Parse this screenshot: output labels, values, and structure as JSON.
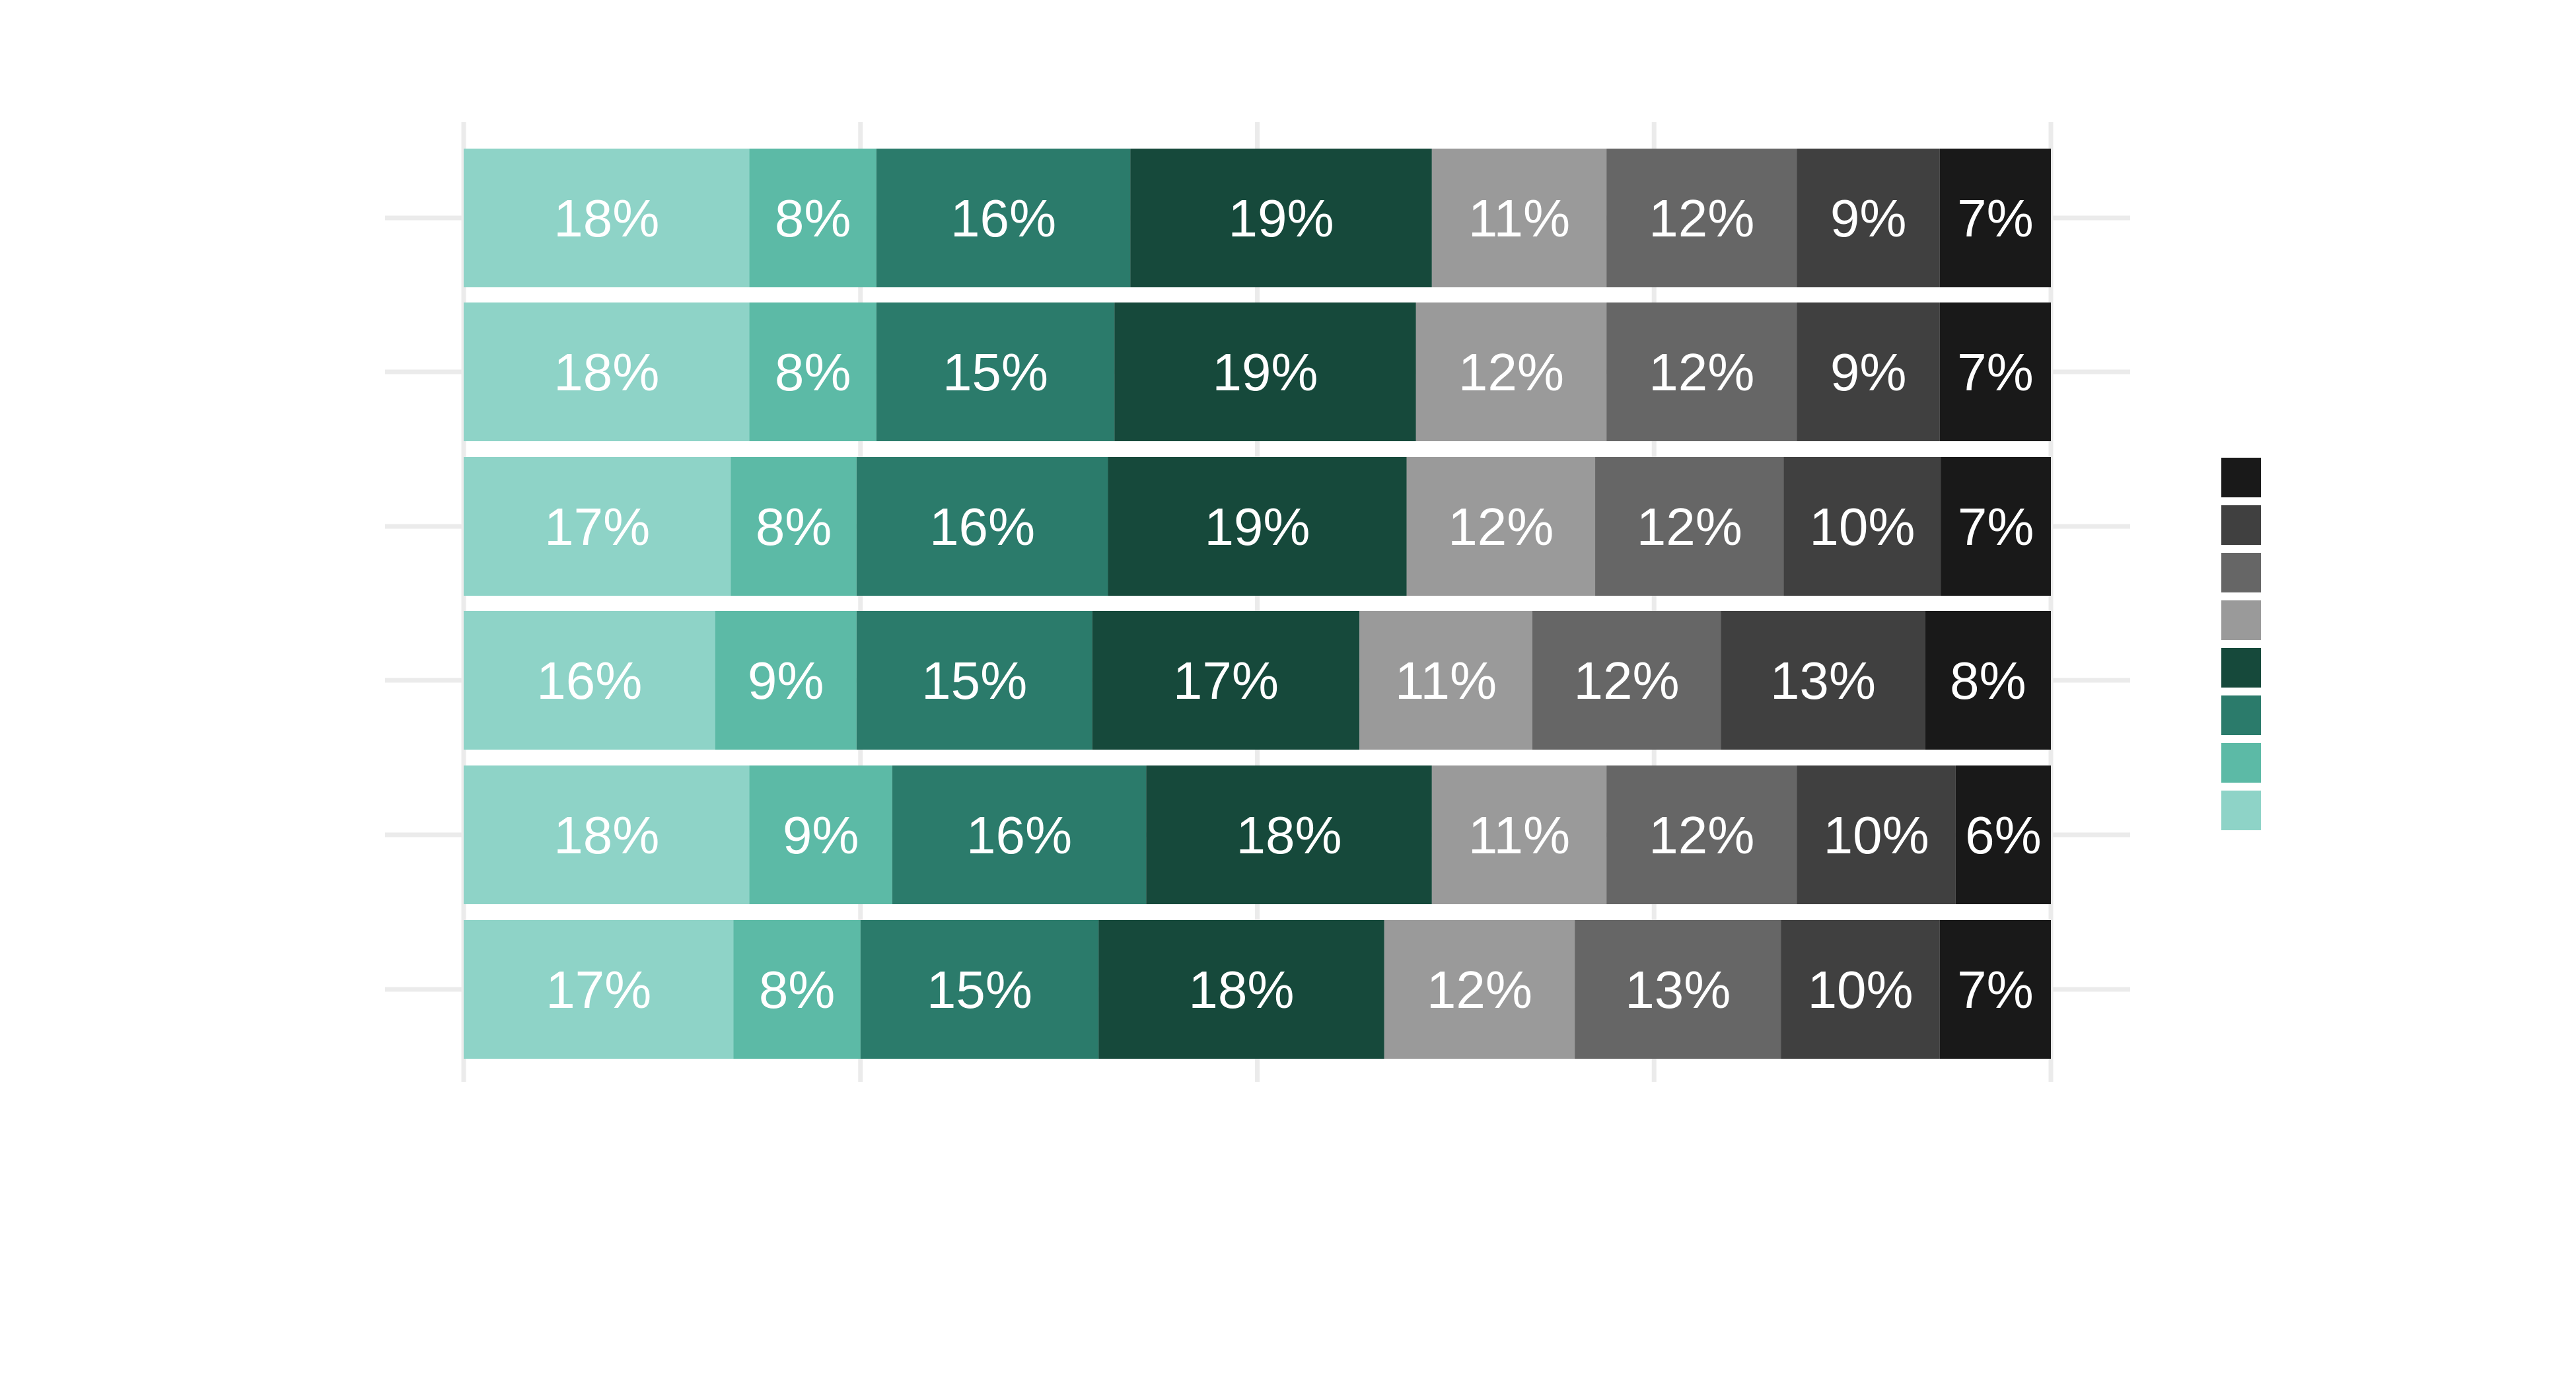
{
  "chart_data": {
    "type": "bar",
    "orientation": "horizontal",
    "stacked": "percent",
    "title": "",
    "xlabel": "",
    "ylabel": "",
    "xlim": [
      0,
      100
    ],
    "grid": true,
    "legend_position": "right",
    "rows": [
      {
        "values": [
          18,
          8,
          16,
          19,
          11,
          12,
          9,
          7
        ],
        "labels": [
          "18%",
          "8%",
          "16%",
          "19%",
          "11%",
          "12%",
          "9%",
          "7%"
        ]
      },
      {
        "values": [
          18,
          8,
          15,
          19,
          12,
          12,
          9,
          7
        ],
        "labels": [
          "18%",
          "8%",
          "15%",
          "19%",
          "12%",
          "12%",
          "9%",
          "7%"
        ]
      },
      {
        "values": [
          17,
          8,
          16,
          19,
          12,
          12,
          10,
          7
        ],
        "labels": [
          "17%",
          "8%",
          "16%",
          "19%",
          "12%",
          "12%",
          "10%",
          "7%"
        ]
      },
      {
        "values": [
          16,
          9,
          15,
          17,
          11,
          12,
          13,
          8
        ],
        "labels": [
          "16%",
          "9%",
          "15%",
          "17%",
          "11%",
          "12%",
          "13%",
          "8%"
        ]
      },
      {
        "values": [
          18,
          9,
          16,
          18,
          11,
          12,
          10,
          6
        ],
        "labels": [
          "18%",
          "9%",
          "16%",
          "18%",
          "11%",
          "12%",
          "10%",
          "6%"
        ]
      },
      {
        "values": [
          17,
          8,
          15,
          18,
          12,
          13,
          10,
          7
        ],
        "labels": [
          "17%",
          "8%",
          "15%",
          "18%",
          "12%",
          "13%",
          "10%",
          "7%"
        ]
      }
    ],
    "series_colors": [
      "#8ed3c7",
      "#5cbaa6",
      "#2b7b6b",
      "#16493b",
      "#9a9a9a",
      "#666666",
      "#404040",
      "#191919"
    ]
  }
}
